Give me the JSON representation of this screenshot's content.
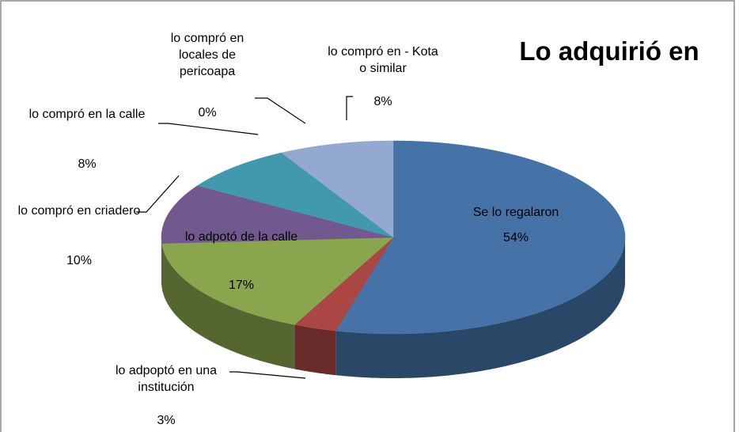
{
  "chart_data": {
    "type": "pie",
    "title": "Lo adquirió en",
    "categories": [
      "Se lo regalaron",
      "lo adpoptó en una institución",
      "lo adpotó de la calle",
      "lo compró en criadero",
      "lo compró en la calle",
      "lo compró en locales de pericoapa",
      "lo compró en - Kota o similar"
    ],
    "values": [
      54,
      3,
      17,
      10,
      8,
      0,
      8
    ],
    "value_labels": [
      "54%",
      "3%",
      "17%",
      "10%",
      "8%",
      "0%",
      "8%"
    ],
    "colors": [
      "#4572a7",
      "#aa4643",
      "#89a54e",
      "#71588f",
      "#4198af",
      "#db843d",
      "#93a9cf"
    ]
  }
}
